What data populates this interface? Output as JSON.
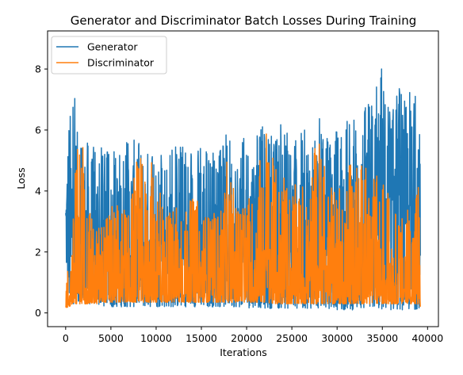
{
  "chart_data": {
    "type": "line",
    "title": "Generator and Discriminator Batch Losses During Training",
    "xlabel": "Iterations",
    "ylabel": "Loss",
    "xlim": [
      -2000,
      41200
    ],
    "ylim": [
      -0.45,
      9.25
    ],
    "xticks": [
      0,
      5000,
      10000,
      15000,
      20000,
      25000,
      30000,
      35000,
      40000
    ],
    "xtick_labels": [
      "0",
      "5000",
      "10000",
      "15000",
      "20000",
      "25000",
      "30000",
      "35000",
      "40000"
    ],
    "yticks": [
      0,
      2,
      4,
      6,
      8
    ],
    "ytick_labels": [
      "0",
      "2",
      "4",
      "6",
      "8"
    ],
    "grid": false,
    "legend_position": "top-left",
    "series": [
      {
        "name": "Generator",
        "color": "#1f77b4",
        "x": [
          0,
          200,
          400,
          600,
          800,
          1000,
          1200,
          1500,
          1800,
          2100,
          2500,
          3000,
          3500,
          4000,
          5000,
          6000,
          7000,
          8000,
          9000,
          10000,
          11000,
          12000,
          13000,
          14000,
          15000,
          16000,
          17000,
          18000,
          19000,
          20000,
          21000,
          22000,
          23000,
          24000,
          25000,
          26000,
          27000,
          28000,
          29000,
          30000,
          31000,
          32000,
          33000,
          34000,
          35000,
          35500,
          36000,
          37000,
          37500,
          38000,
          38500,
          39000,
          39200
        ],
        "max": [
          4.5,
          6.1,
          7.0,
          6.5,
          7.6,
          7.6,
          6.0,
          5.9,
          6.2,
          5.8,
          5.7,
          5.5,
          5.6,
          5.4,
          5.3,
          5.5,
          5.8,
          5.6,
          5.5,
          5.5,
          5.6,
          5.5,
          5.7,
          5.2,
          5.8,
          5.6,
          5.3,
          6.1,
          5.5,
          5.9,
          6.0,
          6.2,
          5.8,
          6.3,
          5.9,
          5.9,
          6.4,
          6.5,
          5.8,
          6.2,
          6.5,
          6.6,
          6.8,
          7.2,
          8.4,
          6.7,
          7.0,
          7.9,
          7.0,
          7.6,
          7.1,
          8.8,
          4.5
        ],
        "min": [
          2.1,
          0.6,
          0.4,
          0.3,
          0.3,
          0.3,
          0.3,
          0.3,
          0.3,
          0.3,
          0.3,
          0.25,
          0.25,
          0.2,
          0.2,
          0.2,
          0.2,
          0.2,
          0.2,
          0.2,
          0.2,
          0.2,
          0.2,
          0.2,
          0.2,
          0.2,
          0.2,
          0.2,
          0.2,
          0.15,
          0.2,
          0.15,
          0.15,
          0.15,
          0.15,
          0.15,
          0.15,
          0.15,
          0.15,
          0.1,
          0.1,
          0.1,
          0.1,
          0.1,
          0.1,
          0.1,
          0.1,
          0.1,
          0.1,
          0.1,
          0.1,
          0.15,
          0.2
        ]
      },
      {
        "name": "Discriminator",
        "color": "#ff7f0e",
        "x": [
          0,
          200,
          400,
          600,
          800,
          1000,
          1200,
          1500,
          1800,
          2100,
          2500,
          3000,
          3500,
          4000,
          5000,
          6000,
          7000,
          8000,
          9000,
          10000,
          11000,
          12000,
          13000,
          14000,
          15000,
          16000,
          17000,
          18000,
          19000,
          20000,
          21000,
          22000,
          23000,
          24000,
          25000,
          26000,
          27000,
          28000,
          29000,
          30000,
          31000,
          32000,
          33000,
          34000,
          35000,
          35500,
          36000,
          37000,
          37500,
          38000,
          38500,
          39000,
          39200
        ],
        "max": [
          1.6,
          1.5,
          2.0,
          2.5,
          3.0,
          4.4,
          5.5,
          6.2,
          5.9,
          4.8,
          3.4,
          3.1,
          3.0,
          3.2,
          3.5,
          3.6,
          3.4,
          5.3,
          4.6,
          5.4,
          3.5,
          3.5,
          3.4,
          3.8,
          3.7,
          3.2,
          3.5,
          5.3,
          3.5,
          4.0,
          3.8,
          7.0,
          4.9,
          4.6,
          4.3,
          4.1,
          4.4,
          6.2,
          4.2,
          4.0,
          4.7,
          5.2,
          5.0,
          4.4,
          4.8,
          4.2,
          3.6,
          3.1,
          3.4,
          3.5,
          3.9,
          5.5,
          1.4
        ],
        "min": [
          0.2,
          0.15,
          0.2,
          0.25,
          0.3,
          0.3,
          0.3,
          0.3,
          0.3,
          0.3,
          0.3,
          0.3,
          0.3,
          0.35,
          0.35,
          0.35,
          0.35,
          0.35,
          0.35,
          0.35,
          0.35,
          0.35,
          0.35,
          0.35,
          0.35,
          0.35,
          0.35,
          0.35,
          0.35,
          0.35,
          0.35,
          0.35,
          0.3,
          0.3,
          0.3,
          0.3,
          0.3,
          0.3,
          0.3,
          0.3,
          0.3,
          0.3,
          0.3,
          0.3,
          0.3,
          0.3,
          0.3,
          0.3,
          0.3,
          0.3,
          0.3,
          0.2,
          0.2
        ]
      }
    ]
  }
}
